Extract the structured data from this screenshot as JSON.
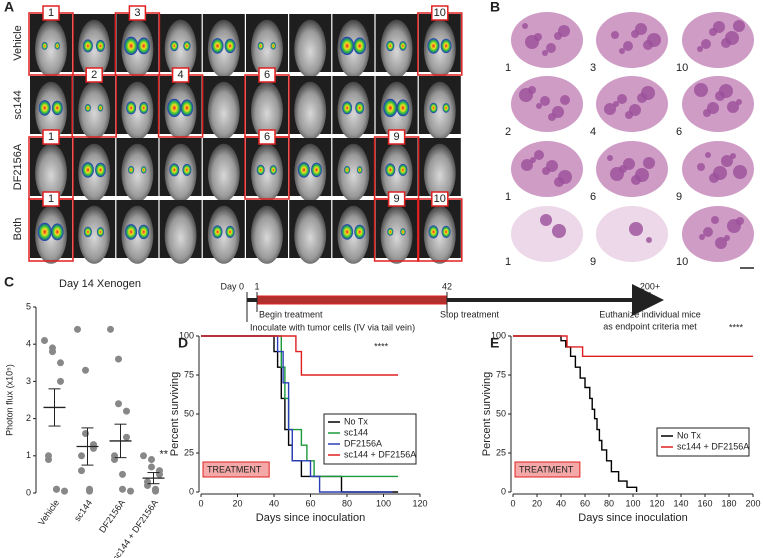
{
  "panel_a": {
    "letter": "A",
    "rows": [
      {
        "name": "Vehicle",
        "labels": [
          "1",
          "3",
          "10"
        ]
      },
      {
        "name": "sc144",
        "labels": [
          "2",
          "4",
          "6"
        ]
      },
      {
        "name": "DF2156A",
        "labels": [
          "1",
          "6",
          "9"
        ]
      },
      {
        "name": "Both",
        "labels": [
          "1",
          "9",
          "10"
        ]
      }
    ]
  },
  "panel_b": {
    "letter": "B",
    "labels": [
      [
        "1",
        "3",
        "10"
      ],
      [
        "2",
        "4",
        "6"
      ],
      [
        "1",
        "6",
        "9"
      ],
      [
        "1",
        "9",
        "10"
      ]
    ]
  },
  "timeline": {
    "day_label": "Day 0",
    "marks": [
      "1",
      "42",
      "200+"
    ],
    "begin": "Begin treatment",
    "stop": "Stop treatment",
    "inoculate": "Inoculate with tumor cells (IV via tail vein)",
    "euthanize": [
      "Euthanize individual mice",
      "as endpoint criteria met"
    ]
  },
  "chart_data": [
    {
      "type": "dotplot",
      "letter": "C",
      "title": "Day 14 Xenogen",
      "y_label": "Photon flux (x10⁵)",
      "categories": [
        "Vehicle",
        "sc144",
        "DF2156A",
        "sc144 + DF2156A"
      ],
      "groups": [
        {
          "values": [
            4.1,
            3.9,
            3.8,
            3.5,
            3.0,
            1.0,
            0.9,
            0.1,
            0.1,
            0.05
          ],
          "mean": 2.3,
          "sem": 0.5
        },
        {
          "values": [
            4.4,
            3.3,
            1.6,
            1.3,
            1.2,
            1.0,
            0.6,
            0.1,
            0.05
          ],
          "mean": 1.25,
          "sem": 0.5
        },
        {
          "values": [
            4.4,
            3.6,
            2.4,
            2.2,
            1.5,
            1.0,
            0.9,
            0.5,
            0.1,
            0.05
          ],
          "mean": 1.4,
          "sem": 0.45
        },
        {
          "values": [
            1.0,
            0.9,
            0.7,
            0.6,
            0.5,
            0.3,
            0.2,
            0.1,
            0.05
          ],
          "mean": 0.4,
          "sem": 0.15
        }
      ],
      "annotation": "**",
      "ylim": [
        0,
        5
      ],
      "yticks": [
        0,
        1,
        2,
        3,
        4,
        5
      ]
    },
    {
      "type": "survival",
      "letter": "D",
      "y_label": "Percent surviving",
      "x_label": "Days since inoculation",
      "shaded_label": "TREATMENT",
      "annotation": "****",
      "legend": "lower right",
      "xlim": [
        0,
        120
      ],
      "xticks": [
        0,
        20,
        40,
        60,
        80,
        100,
        120
      ],
      "ylim": [
        0,
        100
      ],
      "yticks": [
        0,
        25,
        50,
        75,
        100
      ],
      "series": [
        {
          "name": "No Tx",
          "color": "#000000",
          "x": [
            0,
            40,
            40,
            42,
            42,
            44,
            44,
            46,
            46,
            48,
            48,
            50,
            50,
            55,
            55,
            77,
            77,
            108
          ],
          "y": [
            100,
            100,
            90,
            90,
            80,
            80,
            60,
            60,
            40,
            40,
            30,
            30,
            20,
            20,
            10,
            10,
            0,
            0
          ]
        },
        {
          "name": "sc144",
          "color": "#1a9a3a",
          "x": [
            0,
            44,
            44,
            46,
            46,
            48,
            48,
            55,
            55,
            58,
            58,
            62,
            62,
            108
          ],
          "y": [
            100,
            100,
            80,
            80,
            60,
            60,
            40,
            40,
            30,
            30,
            20,
            20,
            10,
            10
          ]
        },
        {
          "name": "DF2156A",
          "color": "#2b3fb8",
          "x": [
            0,
            42,
            42,
            45,
            45,
            48,
            48,
            50,
            50,
            60,
            60,
            65,
            65,
            105
          ],
          "y": [
            100,
            100,
            90,
            90,
            70,
            70,
            40,
            40,
            20,
            20,
            10,
            10,
            0,
            0
          ]
        },
        {
          "name": "sc144 + DF2156A",
          "color": "#e02020",
          "x": [
            0,
            52,
            52,
            55,
            55,
            108
          ],
          "y": [
            100,
            100,
            90,
            90,
            75,
            75
          ]
        }
      ]
    },
    {
      "type": "survival",
      "letter": "E",
      "y_label": "Percent surviving",
      "x_label": "Days since inoculation",
      "shaded_label": "TREATMENT",
      "annotation": "****",
      "legend": "lower right",
      "xlim": [
        0,
        200
      ],
      "xticks": [
        0,
        20,
        40,
        60,
        80,
        100,
        120,
        140,
        160,
        180,
        200
      ],
      "ylim": [
        0,
        100
      ],
      "yticks": [
        0,
        25,
        50,
        75,
        100
      ],
      "series": [
        {
          "name": "No Tx",
          "color": "#000000",
          "x": [
            0,
            40,
            40,
            44,
            44,
            48,
            48,
            52,
            52,
            56,
            56,
            60,
            60,
            64,
            64,
            66,
            66,
            68,
            68,
            70,
            70,
            72,
            72,
            74,
            74,
            78,
            78,
            82,
            82,
            88,
            88,
            95,
            95,
            103,
            103
          ],
          "y": [
            100,
            100,
            97,
            97,
            93,
            93,
            87,
            87,
            80,
            80,
            73,
            73,
            67,
            67,
            60,
            60,
            53,
            53,
            47,
            47,
            40,
            40,
            33,
            33,
            27,
            27,
            20,
            20,
            13,
            13,
            7,
            7,
            3,
            3,
            0
          ]
        },
        {
          "name": "sc144 + DF2156A",
          "color": "#e02020",
          "x": [
            0,
            45,
            45,
            58,
            58,
            200
          ],
          "y": [
            100,
            100,
            93,
            93,
            87,
            87
          ]
        }
      ]
    }
  ]
}
